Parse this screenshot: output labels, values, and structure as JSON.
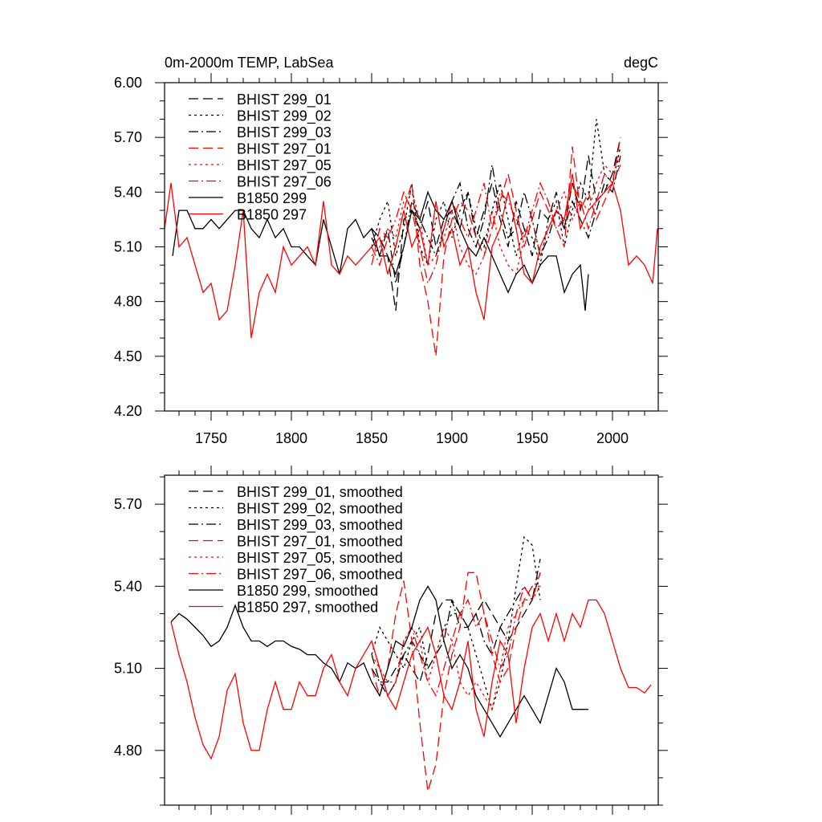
{
  "chart_data": [
    {
      "type": "line",
      "title": "0m-2000m TEMP, LabSea",
      "units": "degC",
      "xlabel": "",
      "ylabel": "",
      "xlim": [
        1721,
        2028.5
      ],
      "ylim": [
        4.2,
        6.0
      ],
      "xticks": [
        1750,
        1800,
        1850,
        1900,
        1950,
        2000
      ],
      "xtick_labels": [
        "1750",
        "1800",
        "1850",
        "1900",
        "1950",
        "2000"
      ],
      "yticks": [
        4.2,
        4.5,
        4.8,
        5.1,
        5.4,
        5.7,
        6.0
      ],
      "ytick_labels": [
        "4.20",
        "4.50",
        "4.80",
        "5.10",
        "5.40",
        "5.70",
        "6.00"
      ],
      "legend_position": "top-left",
      "series": [
        {
          "name": "BHIST 299_01",
          "color": "#000000",
          "dash": "long",
          "x_start": 1850,
          "x_step": 5,
          "values": [
            5.2,
            5.15,
            5.05,
            4.75,
            5.25,
            5.3,
            5.2,
            5.35,
            5.1,
            5.25,
            5.3,
            5.2,
            5.4,
            5.15,
            5.3,
            5.45,
            5.25,
            5.1,
            5.35,
            5.2,
            5.05,
            5.3,
            5.25,
            5.4,
            5.2,
            5.45,
            5.3,
            5.6,
            5.35,
            5.4,
            5.5,
            5.7
          ]
        },
        {
          "name": "BHIST 299_02",
          "color": "#000000",
          "dash": "dot",
          "x_start": 1850,
          "x_step": 5,
          "values": [
            5.1,
            5.25,
            5.35,
            5.05,
            5.2,
            5.45,
            5.1,
            5.0,
            5.25,
            5.35,
            5.15,
            5.3,
            5.4,
            5.2,
            5.1,
            5.3,
            5.45,
            5.25,
            5.05,
            5.2,
            5.15,
            5.0,
            5.25,
            5.35,
            5.1,
            5.3,
            5.45,
            5.35,
            5.8,
            5.5,
            5.45,
            5.65
          ]
        },
        {
          "name": "BHIST 299_03",
          "color": "#000000",
          "dash": "dashdot",
          "x_start": 1850,
          "x_step": 5,
          "values": [
            5.15,
            5.05,
            5.2,
            4.9,
            5.1,
            5.35,
            5.25,
            5.15,
            5.05,
            5.2,
            5.35,
            5.45,
            5.2,
            5.1,
            5.25,
            5.55,
            5.3,
            5.15,
            5.2,
            5.4,
            5.25,
            5.05,
            5.15,
            5.3,
            5.2,
            5.35,
            5.25,
            5.15,
            5.3,
            5.45,
            5.4,
            5.6
          ]
        },
        {
          "name": "BHIST 297_01",
          "color": "#ff0000",
          "dash": "long",
          "x_start": 1850,
          "x_step": 5,
          "values": [
            5.0,
            5.2,
            5.15,
            5.1,
            5.3,
            5.45,
            5.0,
            4.8,
            4.5,
            5.05,
            5.25,
            5.35,
            5.3,
            5.15,
            5.05,
            5.2,
            5.35,
            5.5,
            5.3,
            5.1,
            5.25,
            5.4,
            5.3,
            5.2,
            5.1,
            5.65,
            5.3,
            5.4,
            5.25,
            5.35,
            5.45,
            5.7
          ]
        },
        {
          "name": "BHIST 297_05",
          "color": "#ff0000",
          "dash": "dot",
          "x_start": 1850,
          "x_step": 5,
          "values": [
            5.05,
            5.1,
            5.2,
            5.15,
            5.35,
            5.4,
            5.25,
            5.0,
            5.05,
            5.15,
            5.3,
            5.1,
            5.0,
            4.95,
            5.05,
            5.3,
            5.1,
            5.0,
            4.95,
            5.15,
            5.25,
            5.05,
            5.2,
            5.3,
            5.4,
            5.25,
            5.35,
            5.3,
            5.45,
            5.55,
            5.5,
            5.6
          ]
        },
        {
          "name": "BHIST 297_06",
          "color": "#ff0000",
          "dash": "dashdot",
          "x_start": 1850,
          "x_step": 5,
          "values": [
            5.1,
            5.0,
            5.15,
            5.25,
            5.4,
            5.3,
            5.1,
            4.9,
            5.0,
            5.2,
            5.35,
            5.25,
            5.15,
            5.3,
            5.45,
            5.2,
            5.4,
            5.35,
            5.25,
            5.15,
            5.3,
            5.45,
            5.35,
            5.2,
            5.25,
            5.45,
            5.35,
            5.2,
            5.35,
            5.5,
            5.45,
            5.55
          ]
        },
        {
          "name": "B1850 299",
          "color": "#000000",
          "dash": "solid",
          "x": [
            1726,
            1730,
            1735,
            1740,
            1745,
            1750,
            1755,
            1760,
            1765,
            1770,
            1775,
            1780,
            1785,
            1790,
            1795,
            1800,
            1805,
            1810,
            1815,
            1820,
            1825,
            1830,
            1835,
            1840,
            1845,
            1850,
            1855,
            1860,
            1865,
            1870,
            1875,
            1880,
            1885,
            1890,
            1895,
            1900,
            1905,
            1910,
            1915,
            1920,
            1925,
            1930,
            1935,
            1940,
            1945,
            1950,
            1955,
            1960,
            1965,
            1970,
            1975,
            1980,
            1983,
            1985
          ],
          "values": [
            5.05,
            5.3,
            5.3,
            5.2,
            5.2,
            5.25,
            5.2,
            5.25,
            5.3,
            5.3,
            5.2,
            5.15,
            5.25,
            5.15,
            5.2,
            5.1,
            5.1,
            5.05,
            5.0,
            5.25,
            5.1,
            4.95,
            5.2,
            5.25,
            5.15,
            5.2,
            5.05,
            5.05,
            4.95,
            5.1,
            5.3,
            5.25,
            5.4,
            5.3,
            5.25,
            5.35,
            5.2,
            5.1,
            5.05,
            5.15,
            5.05,
            4.95,
            4.85,
            4.95,
            5.0,
            4.9,
            5.0,
            5.05,
            5.05,
            4.85,
            4.95,
            5.0,
            4.75,
            4.95
          ]
        },
        {
          "name": "B1850 297",
          "color": "#ff0000",
          "dash": "solid",
          "x": [
            1721,
            1725,
            1730,
            1735,
            1740,
            1745,
            1750,
            1755,
            1760,
            1765,
            1770,
            1775,
            1780,
            1785,
            1790,
            1795,
            1800,
            1805,
            1810,
            1815,
            1820,
            1825,
            1830,
            1835,
            1840,
            1845,
            1850,
            1855,
            1860,
            1865,
            1870,
            1875,
            1880,
            1885,
            1890,
            1895,
            1900,
            1905,
            1910,
            1915,
            1920,
            1925,
            1930,
            1935,
            1940,
            1945,
            1950,
            1955,
            1960,
            1965,
            1970,
            1975,
            1980,
            1985,
            1990,
            1995,
            2000,
            2005,
            2010,
            2015,
            2020,
            2025,
            2028
          ],
          "values": [
            5.2,
            5.45,
            5.1,
            5.15,
            5.0,
            4.85,
            4.9,
            4.7,
            4.75,
            5.0,
            5.3,
            4.6,
            4.85,
            4.95,
            4.85,
            5.1,
            5.0,
            5.05,
            5.1,
            5.0,
            5.35,
            5.0,
            4.95,
            5.05,
            5.0,
            5.05,
            5.1,
            5.15,
            4.95,
            5.1,
            5.3,
            5.1,
            5.2,
            5.0,
            5.35,
            5.1,
            5.2,
            5.0,
            5.1,
            4.85,
            4.7,
            5.1,
            5.2,
            5.4,
            5.2,
            4.95,
            4.9,
            5.1,
            5.2,
            5.3,
            5.25,
            5.5,
            5.2,
            5.3,
            5.35,
            5.4,
            5.45,
            5.3,
            5.0,
            5.05,
            5.0,
            4.9,
            5.2
          ]
        }
      ]
    },
    {
      "type": "line",
      "title": "",
      "xlabel": "",
      "ylabel": "",
      "xlim": [
        1721,
        2028.5
      ],
      "ylim": [
        4.6,
        5.806
      ],
      "xticks": [
        1750,
        1800,
        1850,
        1900,
        1950,
        2000
      ],
      "yticks": [
        4.8,
        5.1,
        5.4,
        5.7
      ],
      "ytick_labels": [
        "4.80",
        "5.10",
        "5.40",
        "5.70"
      ],
      "legend_position": "top-left",
      "series": [
        {
          "name": "BHIST 299_01, smoothed",
          "color": "#000000",
          "dash": "long",
          "x_start": 1850,
          "x_step": 5,
          "values": [
            5.15,
            5.05,
            5.05,
            5.1,
            5.15,
            5.1,
            5.05,
            5.15,
            5.3,
            5.35,
            5.35,
            5.3,
            5.25,
            5.3,
            5.35,
            5.3,
            5.25,
            5.2,
            5.25,
            5.3,
            5.35,
            5.45
          ]
        },
        {
          "name": "BHIST 299_02, smoothed",
          "color": "#000000",
          "dash": "dot",
          "x_start": 1850,
          "x_step": 5,
          "values": [
            5.15,
            5.25,
            5.2,
            5.15,
            5.1,
            5.2,
            5.25,
            5.1,
            5.15,
            5.25,
            5.3,
            5.3,
            5.25,
            5.15,
            5.05,
            4.95,
            5.05,
            5.2,
            5.4,
            5.58,
            5.55,
            5.35
          ]
        },
        {
          "name": "BHIST 299_03, smoothed",
          "color": "#000000",
          "dash": "dashdot",
          "x_start": 1850,
          "x_step": 5,
          "values": [
            5.1,
            5.05,
            5.0,
            5.05,
            5.15,
            5.2,
            5.15,
            5.1,
            5.15,
            5.2,
            5.35,
            5.25,
            5.25,
            5.3,
            5.2,
            5.15,
            5.25,
            5.3,
            5.35,
            5.4,
            5.35,
            5.5
          ]
        },
        {
          "name": "BHIST 297_01, smoothed",
          "color": "#ff0000",
          "dash": "long",
          "x_start": 1850,
          "x_step": 5,
          "values": [
            5.1,
            5.0,
            5.1,
            5.3,
            5.42,
            5.2,
            4.9,
            4.65,
            4.75,
            5.0,
            5.15,
            5.25,
            5.45,
            5.45,
            5.3,
            5.15,
            5.05,
            5.1,
            5.25,
            5.35,
            5.4,
            5.4
          ]
        },
        {
          "name": "BHIST 297_05, smoothed",
          "color": "#ff0000",
          "dash": "dot",
          "x_start": 1850,
          "x_step": 5,
          "values": [
            5.15,
            5.1,
            5.05,
            5.05,
            5.2,
            5.25,
            5.2,
            5.05,
            5.15,
            5.25,
            5.2,
            5.05,
            5.0,
            5.05,
            5.0,
            4.95,
            5.1,
            5.25,
            5.3,
            5.35,
            5.35,
            5.4
          ]
        },
        {
          "name": "BHIST 297_06, smoothed",
          "color": "#ff0000",
          "dash": "dashdot",
          "x_start": 1850,
          "x_step": 5,
          "values": [
            5.2,
            5.1,
            5.0,
            5.05,
            5.2,
            5.25,
            5.15,
            5.05,
            5.0,
            5.1,
            5.2,
            5.3,
            5.35,
            5.25,
            5.3,
            5.2,
            5.1,
            5.15,
            5.3,
            5.4,
            5.35,
            5.45
          ]
        },
        {
          "name": "B1850 299, smoothed",
          "color": "#000000",
          "dash": "solid",
          "x": [
            1725,
            1730,
            1735,
            1740,
            1745,
            1750,
            1755,
            1760,
            1765,
            1770,
            1775,
            1780,
            1785,
            1790,
            1795,
            1800,
            1805,
            1810,
            1815,
            1820,
            1825,
            1830,
            1835,
            1840,
            1845,
            1850,
            1855,
            1860,
            1865,
            1870,
            1875,
            1880,
            1885,
            1890,
            1895,
            1900,
            1905,
            1910,
            1915,
            1920,
            1925,
            1930,
            1935,
            1940,
            1945,
            1950,
            1955,
            1960,
            1965,
            1970,
            1975,
            1985
          ],
          "values": [
            5.27,
            5.3,
            5.28,
            5.25,
            5.22,
            5.18,
            5.2,
            5.25,
            5.33,
            5.25,
            5.2,
            5.2,
            5.18,
            5.2,
            5.2,
            5.18,
            5.17,
            5.15,
            5.15,
            5.12,
            5.1,
            5.05,
            5.12,
            5.1,
            5.12,
            5.05,
            5.0,
            5.1,
            5.2,
            5.18,
            5.25,
            5.35,
            5.4,
            5.35,
            5.2,
            5.1,
            5.15,
            5.1,
            5.0,
            4.95,
            4.9,
            4.85,
            4.9,
            4.95,
            5.0,
            4.95,
            4.9,
            5.0,
            5.1,
            5.05,
            4.95,
            4.95
          ]
        },
        {
          "name": "B1850 297, smoothed",
          "color": "#ff0000",
          "dash": "solid",
          "x": [
            1725,
            1730,
            1735,
            1740,
            1745,
            1750,
            1755,
            1760,
            1765,
            1770,
            1775,
            1780,
            1785,
            1790,
            1795,
            1800,
            1805,
            1810,
            1815,
            1820,
            1825,
            1830,
            1835,
            1840,
            1845,
            1850,
            1855,
            1860,
            1865,
            1870,
            1875,
            1880,
            1885,
            1890,
            1895,
            1900,
            1905,
            1910,
            1915,
            1920,
            1925,
            1930,
            1935,
            1940,
            1945,
            1950,
            1955,
            1960,
            1965,
            1970,
            1975,
            1980,
            1985,
            1990,
            1995,
            2000,
            2005,
            2010,
            2015,
            2020,
            2024
          ],
          "values": [
            5.27,
            5.15,
            5.05,
            4.92,
            4.82,
            4.77,
            4.85,
            5.02,
            5.08,
            4.9,
            4.8,
            4.8,
            4.95,
            5.05,
            4.95,
            4.95,
            5.05,
            5.0,
            5.0,
            5.1,
            5.15,
            5.05,
            5.0,
            5.1,
            5.15,
            5.2,
            5.1,
            5.0,
            4.95,
            5.05,
            5.15,
            5.2,
            5.25,
            5.15,
            5.0,
            4.95,
            5.05,
            5.2,
            4.95,
            4.85,
            5.05,
            5.2,
            5.15,
            4.9,
            5.1,
            5.25,
            5.3,
            5.2,
            5.3,
            5.2,
            5.3,
            5.25,
            5.35,
            5.35,
            5.3,
            5.2,
            5.1,
            5.03,
            5.03,
            5.01,
            5.04
          ]
        }
      ]
    }
  ]
}
